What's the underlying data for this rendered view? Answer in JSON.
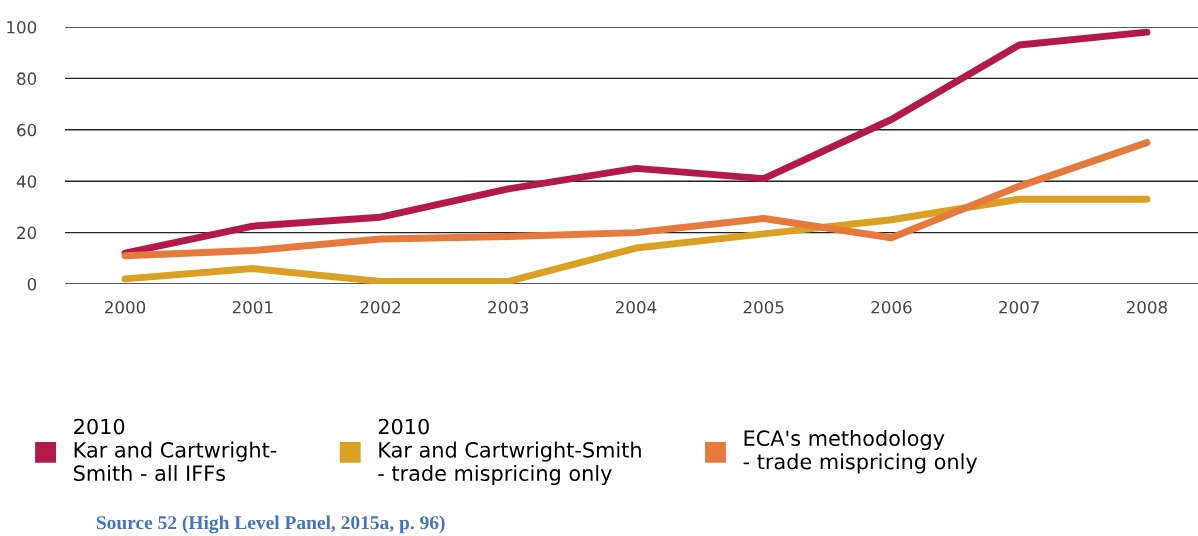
{
  "chart_data": {
    "type": "line",
    "categories": [
      "2000",
      "2001",
      "2002",
      "2003",
      "2004",
      "2005",
      "2006",
      "2007",
      "2008"
    ],
    "series": [
      {
        "name": "2010\nKar and Cartwright-\nSmith - all IFFs",
        "color": "#b5194a",
        "values": [
          12,
          22.5,
          26,
          37,
          45,
          41,
          64,
          93,
          98
        ]
      },
      {
        "name": "2010\nKar and Cartwright-Smith\n- trade mispricing only",
        "color": "#d9a021",
        "values": [
          2,
          6,
          1,
          1,
          14,
          19.5,
          25,
          33,
          33
        ]
      },
      {
        "name": "ECA's methodology\n- trade mispricing only",
        "color": "#e57a3c",
        "values": [
          11,
          13,
          17.5,
          18.5,
          20,
          25.5,
          18,
          38,
          55
        ]
      }
    ],
    "ylim": [
      0,
      100
    ],
    "yticks": [
      0,
      20,
      40,
      60,
      80,
      100
    ],
    "grid": "y",
    "legend": "bottom",
    "marker": "none",
    "line_style": "solid",
    "annotations": [
      "Source 52 (High Level Panel, 2015a, p. 96)"
    ]
  }
}
